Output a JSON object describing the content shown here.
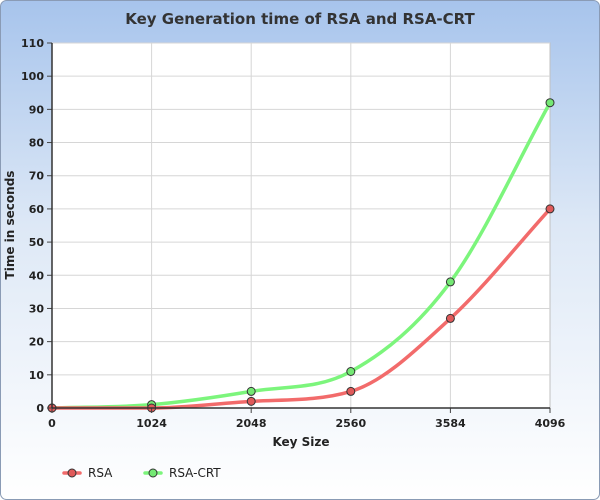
{
  "chart_data": {
    "type": "line",
    "title": "Key Generation time of RSA and RSA-CRT",
    "xlabel": "Key Size",
    "ylabel": "Time in seconds",
    "x": [
      0,
      1024,
      2048,
      2560,
      3584,
      4096
    ],
    "x_tick_labels": [
      "0",
      "1024",
      "2048",
      "2560",
      "3584",
      "4096"
    ],
    "y_ticks": [
      0,
      10,
      20,
      30,
      40,
      50,
      60,
      70,
      80,
      90,
      100,
      110
    ],
    "xlim": [
      0,
      4096
    ],
    "ylim": [
      0,
      110
    ],
    "grid": true,
    "legend_position": "bottom-left",
    "series": [
      {
        "name": "RSA",
        "color": "#f26b6b",
        "marker_color": "#e05a5a",
        "values": [
          0,
          0,
          2,
          5,
          27,
          60
        ]
      },
      {
        "name": "RSA-CRT",
        "color": "#7cf57c",
        "marker_color": "#74e874",
        "values": [
          0,
          1,
          5,
          11,
          38,
          92
        ]
      }
    ]
  }
}
